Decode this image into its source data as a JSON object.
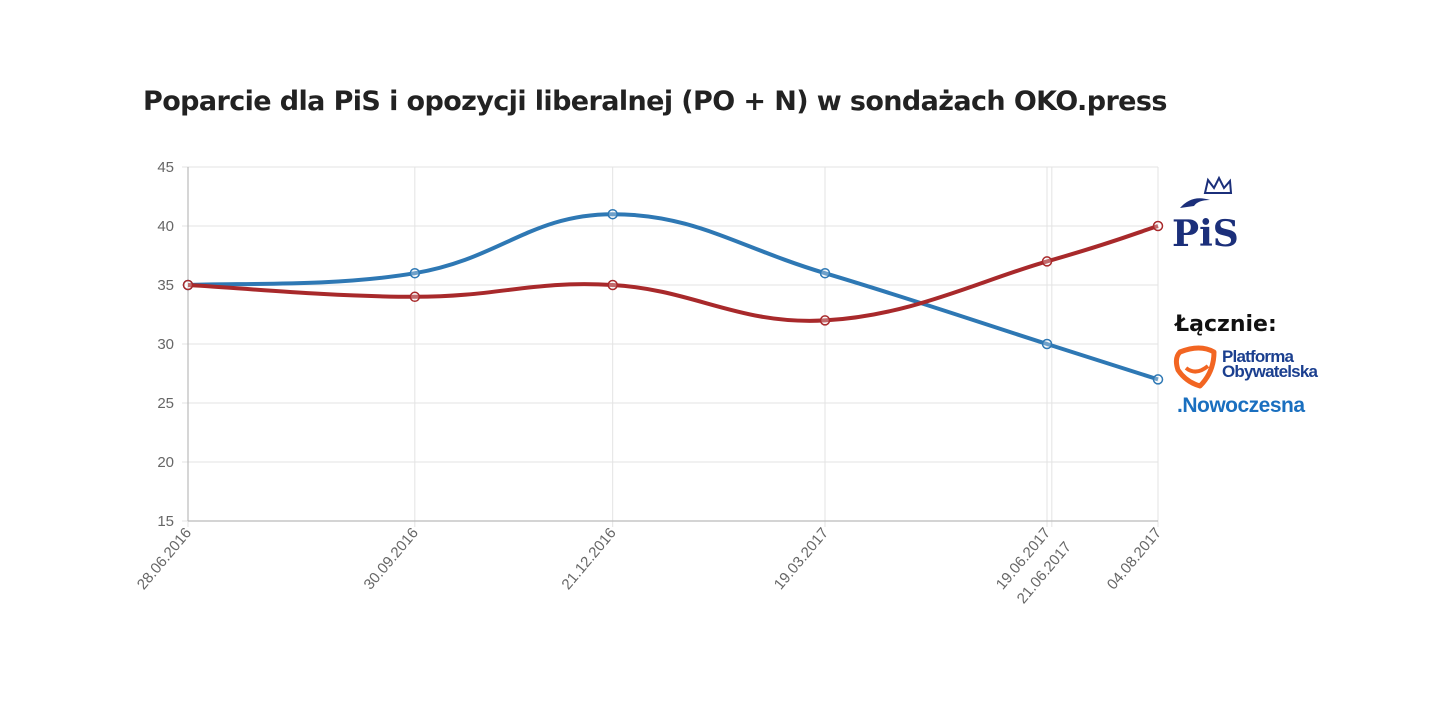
{
  "chart_data": {
    "type": "line",
    "title": "Poparcie dla PiS i opozycji liberalnej (PO + N) w sondażach OKO.press",
    "xlabel": "",
    "ylabel": "",
    "ylim": [
      15,
      45
    ],
    "yticks": [
      "15",
      "20",
      "25",
      "30",
      "35",
      "40",
      "45"
    ],
    "xticks": [
      "28.06.2016",
      "30.09.2016",
      "21.12.2016",
      "19.03.2017",
      "19.06.2017",
      "21.06.2017",
      "04.08.2017"
    ],
    "grid": true,
    "legend": "right",
    "x": [
      "28.06.2016",
      "30.09.2016",
      "21.12.2016",
      "19.03.2017",
      "19.06.2017",
      "04.08.2017"
    ],
    "series": [
      {
        "color": "#2e78b4",
        "values": [
          35,
          36,
          41,
          36,
          30,
          27
        ]
      },
      {
        "color": "#a8292b",
        "values": [
          35,
          34,
          35,
          32,
          37,
          40
        ]
      }
    ]
  },
  "legend": {
    "pis_logo": "PiS",
    "combined_label": "Łącznie:",
    "po_logo_line1": "Platforma",
    "po_logo_line2": "Obywatelska",
    "n_logo": ".Nowoczesna"
  }
}
